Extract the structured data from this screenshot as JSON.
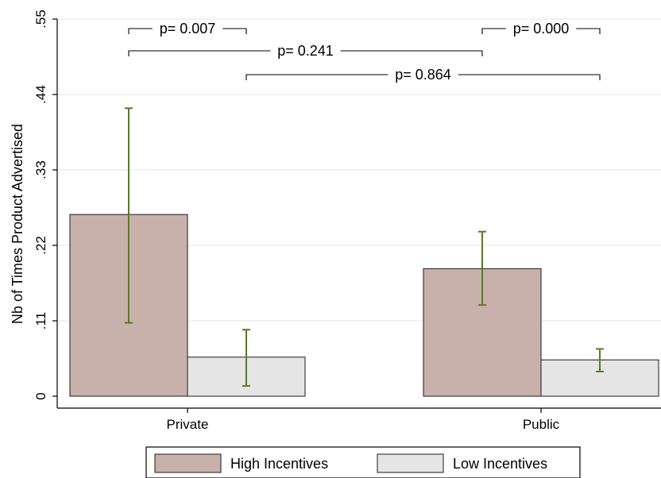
{
  "chart_data": {
    "type": "bar",
    "ylabel": "Nb of Times Product Advertised",
    "ylim": [
      0,
      0.55
    ],
    "yticks": [
      {
        "value": 0,
        "label": "0"
      },
      {
        "value": 0.11,
        "label": ".11"
      },
      {
        "value": 0.22,
        "label": ".22"
      },
      {
        "value": 0.33,
        "label": ".33"
      },
      {
        "value": 0.44,
        "label": ".44"
      },
      {
        "value": 0.55,
        "label": ".55"
      }
    ],
    "categories": [
      "Private",
      "Public"
    ],
    "series": [
      {
        "name": "High Incentives",
        "color": "#c8b1ab",
        "values": [
          0.265,
          0.186
        ],
        "ci_low": [
          0.107,
          0.133
        ],
        "ci_high": [
          0.42,
          0.24
        ]
      },
      {
        "name": "Low Incentives",
        "color": "#e5e5e5",
        "values": [
          0.057,
          0.053
        ],
        "ci_low": [
          0.015,
          0.036
        ],
        "ci_high": [
          0.097,
          0.069
        ]
      }
    ],
    "error_bar_color": "#5b7a2a",
    "grid": true,
    "legend_position": "bottom",
    "annotations": [
      {
        "text": "p= 0.007",
        "from": {
          "category": 0,
          "series": 0
        },
        "to": {
          "category": 0,
          "series": 1
        }
      },
      {
        "text": "p= 0.241",
        "from": {
          "category": 0,
          "series": 0
        },
        "to": {
          "category": 1,
          "series": 0
        }
      },
      {
        "text": "p= 0.864",
        "from": {
          "category": 0,
          "series": 1
        },
        "to": {
          "category": 1,
          "series": 1
        }
      },
      {
        "text": "p= 0.000",
        "from": {
          "category": 1,
          "series": 0
        },
        "to": {
          "category": 1,
          "series": 1
        }
      }
    ]
  }
}
